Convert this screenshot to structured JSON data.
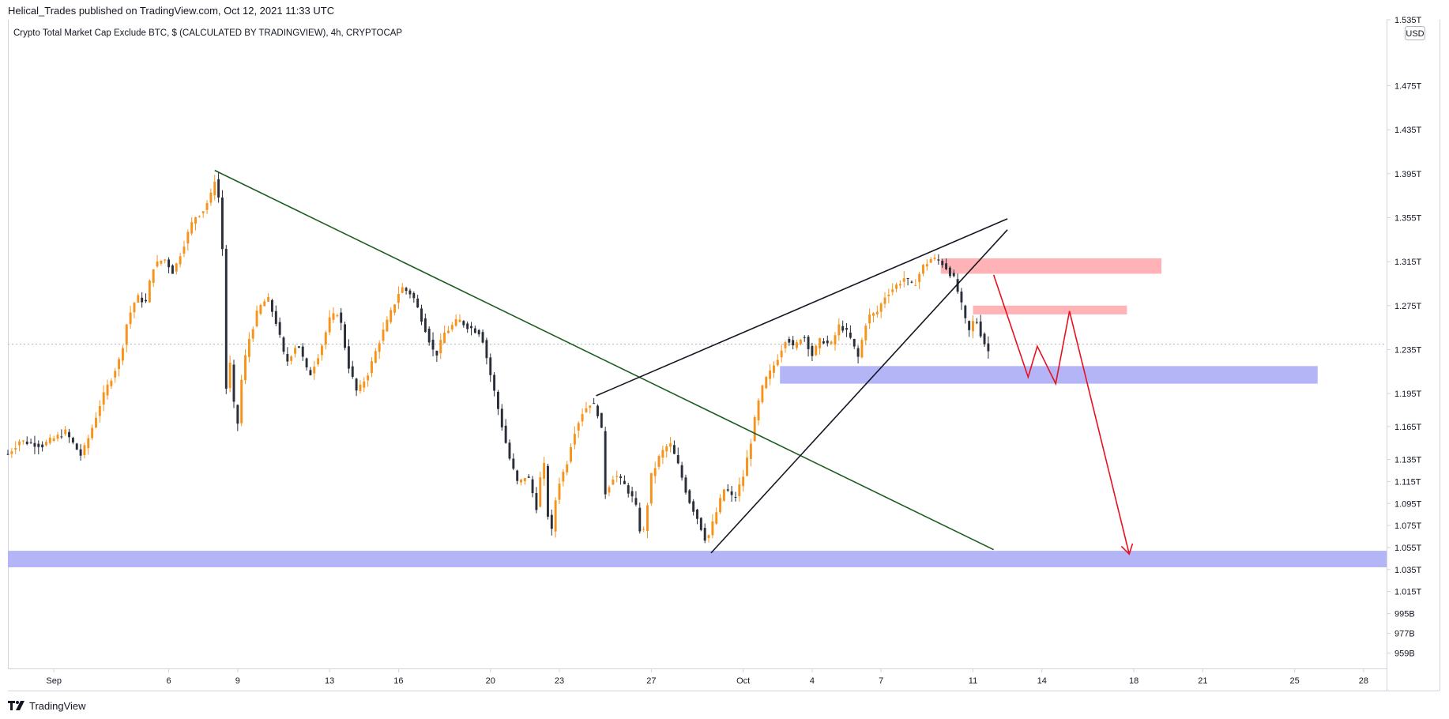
{
  "header": {
    "published_caption": "Helical_Trades published on TradingView.com, Oct 12, 2021 11:33 UTC"
  },
  "footer": {
    "brand": "TradingView"
  },
  "colors": {
    "up": "#f7931a",
    "down": "#2a2e39",
    "trendline_green": "#1b5e20",
    "wedge": "#131722",
    "support_zone": "#b4b5f7",
    "resistance_zone": "#ffb3b6",
    "projection": "#e8101e",
    "grid": "#d1d4dc"
  },
  "chart_data": {
    "type": "candlestick",
    "title": "Crypto Total Market Cap Exclude BTC, $ (CALCULATED BY TRADINGVIEW), 4h, CRYPTOCAP",
    "currency_label": "USD",
    "price_axis": {
      "range": [
        945,
        1535
      ],
      "ticks": [
        {
          "v": 959,
          "label": "959B"
        },
        {
          "v": 977,
          "label": "977B"
        },
        {
          "v": 995,
          "label": "995B"
        },
        {
          "v": 1015,
          "label": "1.015T"
        },
        {
          "v": 1035,
          "label": "1.035T"
        },
        {
          "v": 1055,
          "label": "1.055T"
        },
        {
          "v": 1075,
          "label": "1.075T"
        },
        {
          "v": 1095,
          "label": "1.095T"
        },
        {
          "v": 1115,
          "label": "1.115T"
        },
        {
          "v": 1135,
          "label": "1.135T"
        },
        {
          "v": 1165,
          "label": "1.165T"
        },
        {
          "v": 1195,
          "label": "1.195T"
        },
        {
          "v": 1235,
          "label": "1.235T"
        },
        {
          "v": 1275,
          "label": "1.275T"
        },
        {
          "v": 1315,
          "label": "1.315T"
        },
        {
          "v": 1355,
          "label": "1.355T"
        },
        {
          "v": 1395,
          "label": "1.395T"
        },
        {
          "v": 1435,
          "label": "1.435T"
        },
        {
          "v": 1475,
          "label": "1.475T"
        },
        {
          "v": 1535,
          "label": "1.535T"
        }
      ],
      "last_price_guide": 1240
    },
    "time_axis": {
      "range_days": [
        -2,
        58
      ],
      "ticks": [
        {
          "d": 0,
          "label": "Sep"
        },
        {
          "d": 5,
          "label": "6"
        },
        {
          "d": 8,
          "label": "9"
        },
        {
          "d": 12,
          "label": "13"
        },
        {
          "d": 15,
          "label": "16"
        },
        {
          "d": 19,
          "label": "20"
        },
        {
          "d": 22,
          "label": "23"
        },
        {
          "d": 26,
          "label": "27"
        },
        {
          "d": 30,
          "label": "Oct"
        },
        {
          "d": 33,
          "label": "4"
        },
        {
          "d": 36,
          "label": "7"
        },
        {
          "d": 40,
          "label": "11"
        },
        {
          "d": 43,
          "label": "14"
        },
        {
          "d": 47,
          "label": "18"
        },
        {
          "d": 50,
          "label": "21"
        },
        {
          "d": 54,
          "label": "25"
        },
        {
          "d": 57,
          "label": "28"
        }
      ]
    },
    "anchors": [
      {
        "d": -2.0,
        "p": 1140
      },
      {
        "d": -1.5,
        "p": 1152
      },
      {
        "d": -0.5,
        "p": 1148
      },
      {
        "d": 0.5,
        "p": 1160
      },
      {
        "d": 1.2,
        "p": 1138
      },
      {
        "d": 1.6,
        "p": 1160
      },
      {
        "d": 2.0,
        "p": 1185
      },
      {
        "d": 2.4,
        "p": 1205
      },
      {
        "d": 2.9,
        "p": 1228
      },
      {
        "d": 3.2,
        "p": 1262
      },
      {
        "d": 3.6,
        "p": 1283
      },
      {
        "d": 4.0,
        "p": 1278
      },
      {
        "d": 4.3,
        "p": 1310
      },
      {
        "d": 4.8,
        "p": 1318
      },
      {
        "d": 5.2,
        "p": 1305
      },
      {
        "d": 5.6,
        "p": 1328
      },
      {
        "d": 6.1,
        "p": 1355
      },
      {
        "d": 6.5,
        "p": 1362
      },
      {
        "d": 6.9,
        "p": 1378
      },
      {
        "d": 7.0,
        "p": 1390
      },
      {
        "d": 7.2,
        "p": 1370
      },
      {
        "d": 7.4,
        "p": 1305
      },
      {
        "d": 7.5,
        "p": 1200
      },
      {
        "d": 7.6,
        "p": 1238
      },
      {
        "d": 7.8,
        "p": 1188
      },
      {
        "d": 8.0,
        "p": 1168
      },
      {
        "d": 8.2,
        "p": 1215
      },
      {
        "d": 8.5,
        "p": 1245
      },
      {
        "d": 8.9,
        "p": 1272
      },
      {
        "d": 9.3,
        "p": 1282
      },
      {
        "d": 9.7,
        "p": 1258
      },
      {
        "d": 10.1,
        "p": 1222
      },
      {
        "d": 10.6,
        "p": 1242
      },
      {
        "d": 11.1,
        "p": 1210
      },
      {
        "d": 11.6,
        "p": 1235
      },
      {
        "d": 12.0,
        "p": 1262
      },
      {
        "d": 12.4,
        "p": 1270
      },
      {
        "d": 12.8,
        "p": 1222
      },
      {
        "d": 13.2,
        "p": 1195
      },
      {
        "d": 13.7,
        "p": 1215
      },
      {
        "d": 14.2,
        "p": 1245
      },
      {
        "d": 14.6,
        "p": 1265
      },
      {
        "d": 15.1,
        "p": 1292
      },
      {
        "d": 15.6,
        "p": 1285
      },
      {
        "d": 16.1,
        "p": 1258
      },
      {
        "d": 16.6,
        "p": 1228
      },
      {
        "d": 17.0,
        "p": 1250
      },
      {
        "d": 17.6,
        "p": 1262
      },
      {
        "d": 18.1,
        "p": 1255
      },
      {
        "d": 18.6,
        "p": 1250
      },
      {
        "d": 19.0,
        "p": 1212
      },
      {
        "d": 19.4,
        "p": 1175
      },
      {
        "d": 19.8,
        "p": 1138
      },
      {
        "d": 20.2,
        "p": 1112
      },
      {
        "d": 20.6,
        "p": 1122
      },
      {
        "d": 21.0,
        "p": 1092
      },
      {
        "d": 21.3,
        "p": 1138
      },
      {
        "d": 21.6,
        "p": 1058
      },
      {
        "d": 21.9,
        "p": 1110
      },
      {
        "d": 22.3,
        "p": 1130
      },
      {
        "d": 22.6,
        "p": 1158
      },
      {
        "d": 23.0,
        "p": 1178
      },
      {
        "d": 23.4,
        "p": 1188
      },
      {
        "d": 23.8,
        "p": 1172
      },
      {
        "d": 24.0,
        "p": 1105
      },
      {
        "d": 24.4,
        "p": 1122
      },
      {
        "d": 24.9,
        "p": 1110
      },
      {
        "d": 25.3,
        "p": 1095
      },
      {
        "d": 25.6,
        "p": 1060
      },
      {
        "d": 26.0,
        "p": 1120
      },
      {
        "d": 26.4,
        "p": 1140
      },
      {
        "d": 26.8,
        "p": 1150
      },
      {
        "d": 27.2,
        "p": 1128
      },
      {
        "d": 27.6,
        "p": 1100
      },
      {
        "d": 28.0,
        "p": 1082
      },
      {
        "d": 28.4,
        "p": 1060
      },
      {
        "d": 28.8,
        "p": 1085
      },
      {
        "d": 29.2,
        "p": 1110
      },
      {
        "d": 29.6,
        "p": 1098
      },
      {
        "d": 30.0,
        "p": 1120
      },
      {
        "d": 30.3,
        "p": 1148
      },
      {
        "d": 30.6,
        "p": 1182
      },
      {
        "d": 30.9,
        "p": 1205
      },
      {
        "d": 31.2,
        "p": 1215
      },
      {
        "d": 31.5,
        "p": 1228
      },
      {
        "d": 31.9,
        "p": 1248
      },
      {
        "d": 32.2,
        "p": 1235
      },
      {
        "d": 32.6,
        "p": 1250
      },
      {
        "d": 33.0,
        "p": 1230
      },
      {
        "d": 33.4,
        "p": 1245
      },
      {
        "d": 33.8,
        "p": 1238
      },
      {
        "d": 34.2,
        "p": 1258
      },
      {
        "d": 34.6,
        "p": 1248
      },
      {
        "d": 35.0,
        "p": 1228
      },
      {
        "d": 35.4,
        "p": 1265
      },
      {
        "d": 35.8,
        "p": 1268
      },
      {
        "d": 36.2,
        "p": 1285
      },
      {
        "d": 36.6,
        "p": 1292
      },
      {
        "d": 37.0,
        "p": 1300
      },
      {
        "d": 37.4,
        "p": 1292
      },
      {
        "d": 37.8,
        "p": 1310
      },
      {
        "d": 38.2,
        "p": 1318
      },
      {
        "d": 38.6,
        "p": 1315
      },
      {
        "d": 38.9,
        "p": 1308
      },
      {
        "d": 39.2,
        "p": 1298
      },
      {
        "d": 39.5,
        "p": 1275
      },
      {
        "d": 39.8,
        "p": 1250
      },
      {
        "d": 40.1,
        "p": 1265
      },
      {
        "d": 40.4,
        "p": 1245
      },
      {
        "d": 40.7,
        "p": 1232
      }
    ],
    "annotations": {
      "green_downtrend": {
        "from": {
          "d": 7.0,
          "p": 1398
        },
        "to": {
          "d": 40.9,
          "p": 1053
        }
      },
      "wedge_upper": {
        "from": {
          "d": 23.6,
          "p": 1193
        },
        "to": {
          "d": 41.5,
          "p": 1354
        }
      },
      "wedge_lower": {
        "from": {
          "d": 28.6,
          "p": 1050
        },
        "to": {
          "d": 41.5,
          "p": 1344
        }
      },
      "support_zone_low": {
        "d_start": -2.0,
        "d_end": 58.0,
        "p_low": 1037,
        "p_high": 1052
      },
      "support_zone_mid": {
        "d_start": 31.6,
        "d_end": 55.0,
        "p_low": 1204,
        "p_high": 1220
      },
      "resistance_zone_high": {
        "d_start": 38.6,
        "d_end": 48.2,
        "p_low": 1304,
        "p_high": 1318
      },
      "resistance_zone_low": {
        "d_start": 40.0,
        "d_end": 46.7,
        "p_low": 1267,
        "p_high": 1275
      },
      "projection_path": [
        {
          "d": 40.9,
          "p": 1303
        },
        {
          "d": 42.4,
          "p": 1210
        },
        {
          "d": 42.8,
          "p": 1238
        },
        {
          "d": 43.6,
          "p": 1204
        },
        {
          "d": 44.2,
          "p": 1270
        },
        {
          "d": 46.8,
          "p": 1049
        }
      ]
    }
  }
}
